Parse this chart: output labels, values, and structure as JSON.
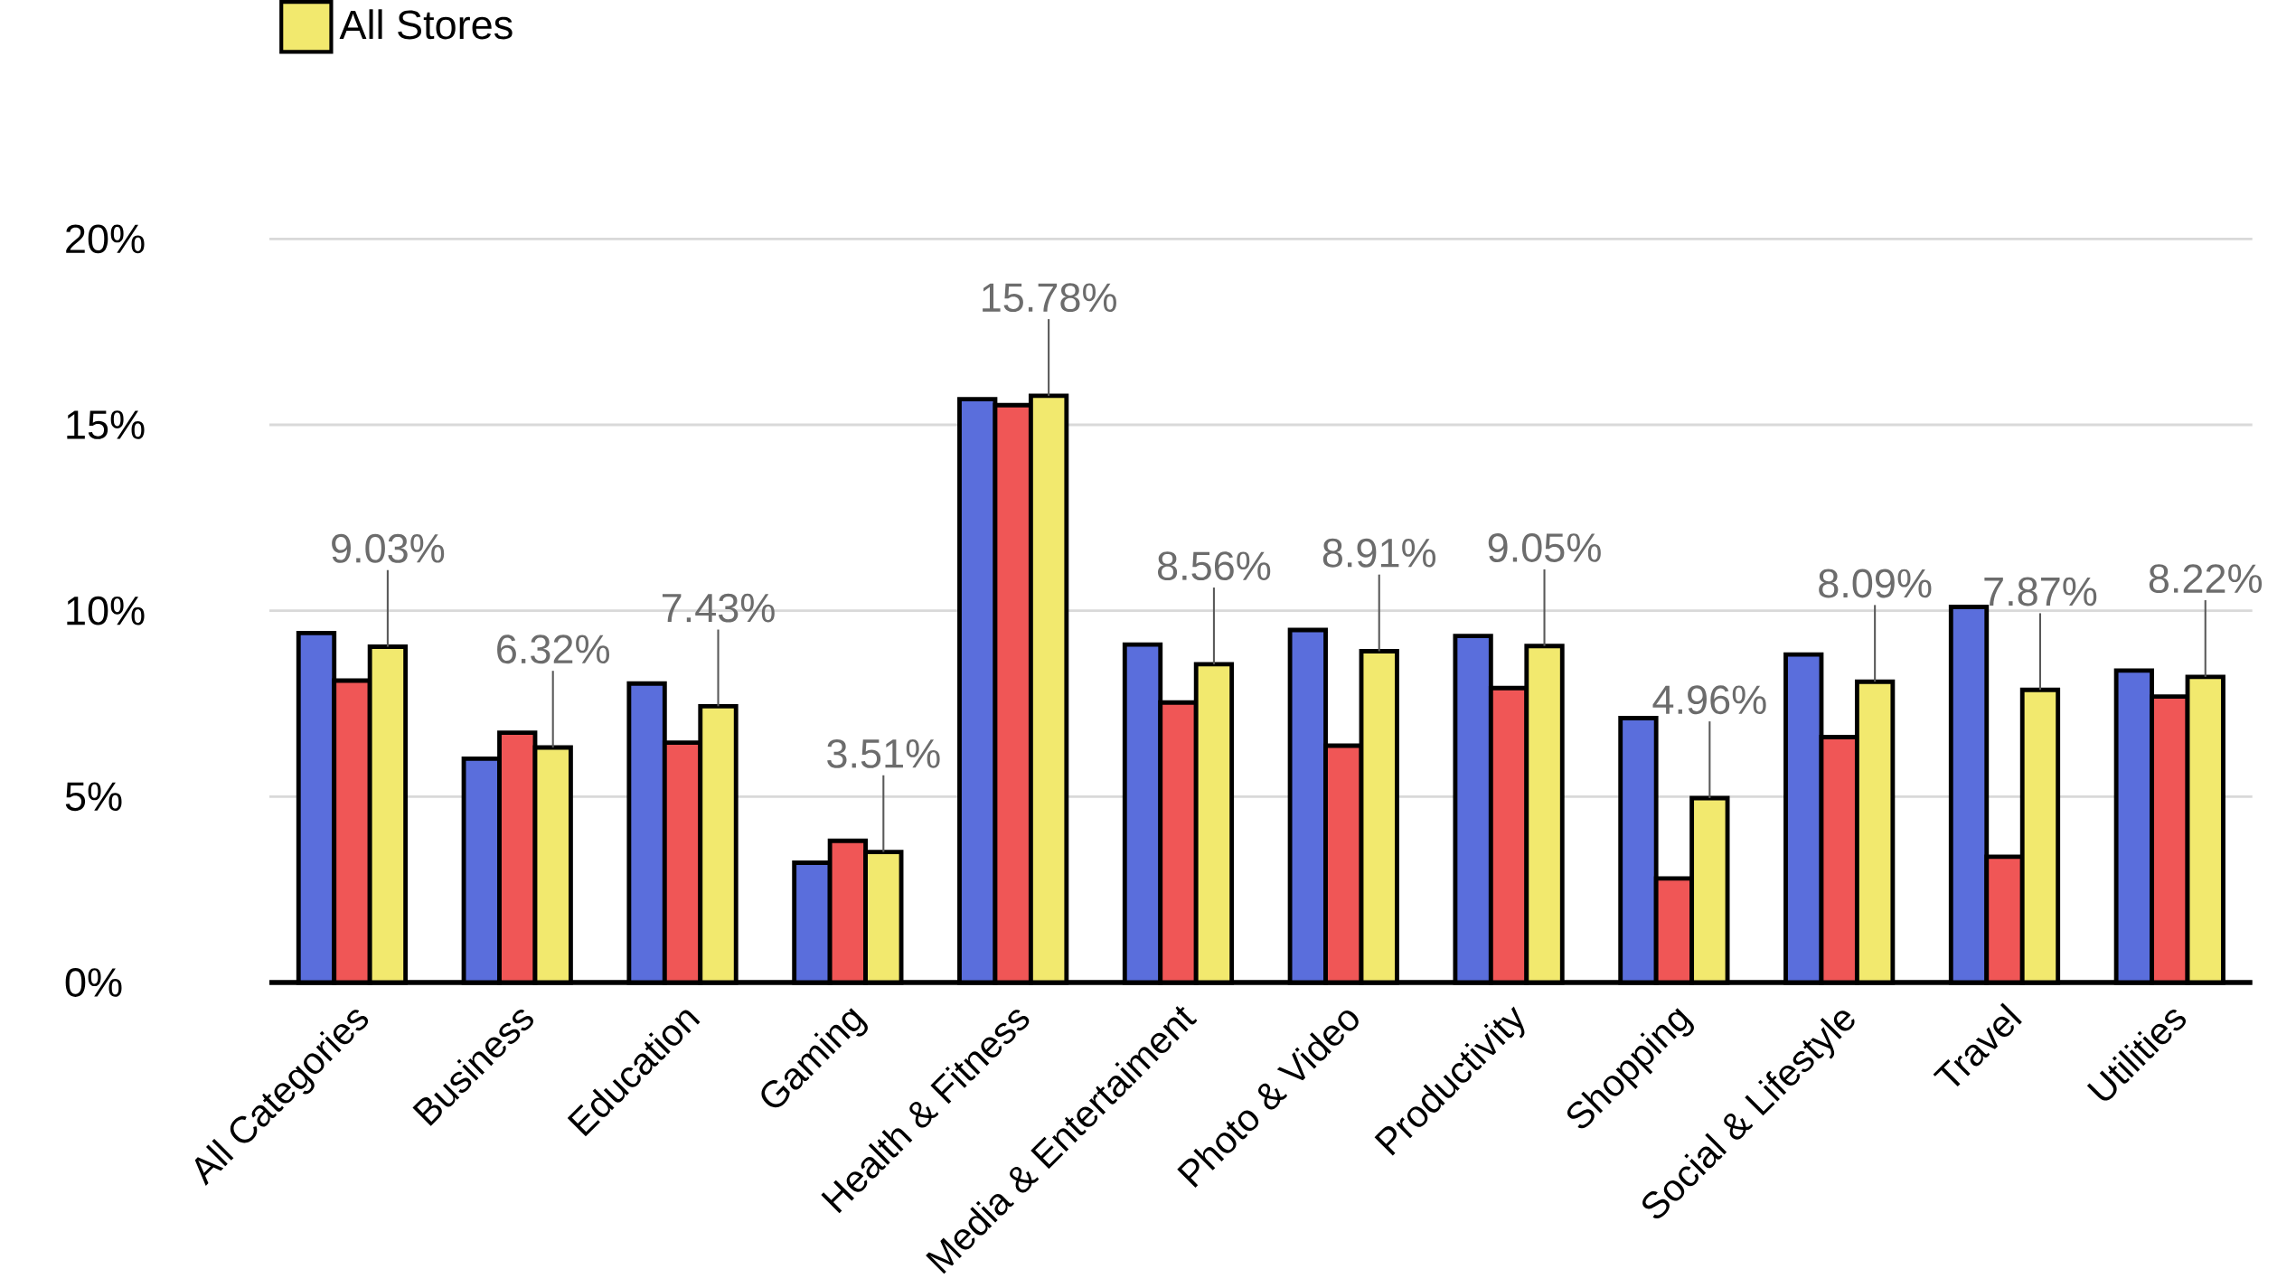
{
  "chart_data": {
    "type": "bar",
    "categories": [
      "All Categories",
      "Business",
      "Education",
      "Gaming",
      "Health & Fitness",
      "Media & Entertaiment",
      "Photo & Video",
      "Productivity",
      "Shopping",
      "Social & Lifestyle",
      "Travel",
      "Utilities"
    ],
    "series": [
      {
        "color": "#5a6edc",
        "values": [
          9.4,
          6.02,
          8.04,
          3.22,
          15.69,
          9.09,
          9.48,
          9.32,
          7.11,
          8.82,
          10.1,
          8.39
        ]
      },
      {
        "color": "#f05656",
        "values": [
          8.12,
          6.72,
          6.45,
          3.81,
          15.53,
          7.53,
          6.37,
          7.92,
          2.8,
          6.6,
          3.38,
          7.69
        ]
      },
      {
        "name": "All Stores",
        "color": "#f2e96e",
        "values": [
          9.03,
          6.32,
          7.43,
          3.51,
          15.78,
          8.56,
          8.91,
          9.05,
          4.96,
          8.09,
          7.87,
          8.22
        ],
        "value_labels": [
          "9.03%",
          "6.32%",
          "7.43%",
          "3.51%",
          "15.78%",
          "8.56%",
          "8.91%",
          "9.05%",
          "4.96%",
          "8.09%",
          "7.87%",
          "8.22%"
        ]
      }
    ],
    "ylim": [
      0,
      20
    ],
    "yticks": [
      {
        "value": 0,
        "label": "0%"
      },
      {
        "value": 5,
        "label": "5%"
      },
      {
        "value": 10,
        "label": "10%"
      },
      {
        "value": 15,
        "label": "15%"
      },
      {
        "value": 20,
        "label": "20%"
      }
    ],
    "grid": "y",
    "legend": "top left"
  }
}
